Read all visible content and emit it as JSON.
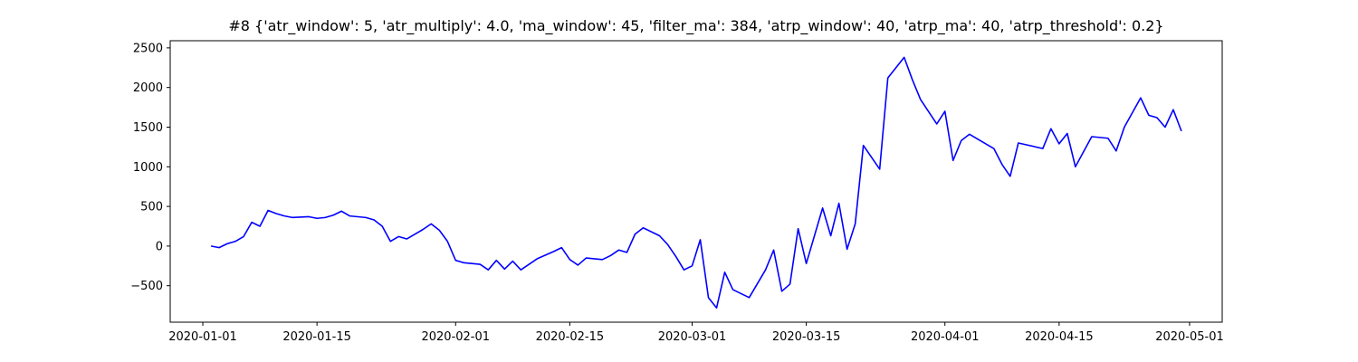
{
  "chart_data": {
    "type": "line",
    "title": "#8 {'atr_window': 5, 'atr_multiply': 4.0, 'ma_window': 45, 'filter_ma': 384, 'atrp_window': 40, 'atrp_ma': 40, 'atrp_threshold': 0.2}",
    "color": "#0000ff",
    "x": [
      "2020-01-02",
      "2020-01-03",
      "2020-01-04",
      "2020-01-05",
      "2020-01-06",
      "2020-01-07",
      "2020-01-08",
      "2020-01-09",
      "2020-01-10",
      "2020-01-11",
      "2020-01-12",
      "2020-01-14",
      "2020-01-15",
      "2020-01-16",
      "2020-01-17",
      "2020-01-18",
      "2020-01-19",
      "2020-01-21",
      "2020-01-22",
      "2020-01-23",
      "2020-01-24",
      "2020-01-25",
      "2020-01-26",
      "2020-01-27",
      "2020-01-28",
      "2020-01-29",
      "2020-01-30",
      "2020-01-31",
      "2020-02-01",
      "2020-02-02",
      "2020-02-04",
      "2020-02-05",
      "2020-02-06",
      "2020-02-07",
      "2020-02-08",
      "2020-02-09",
      "2020-02-11",
      "2020-02-13",
      "2020-02-14",
      "2020-02-15",
      "2020-02-16",
      "2020-02-17",
      "2020-02-19",
      "2020-02-20",
      "2020-02-21",
      "2020-02-22",
      "2020-02-23",
      "2020-02-24",
      "2020-02-26",
      "2020-02-27",
      "2020-02-28",
      "2020-02-29",
      "2020-03-01",
      "2020-03-02",
      "2020-03-03",
      "2020-03-04",
      "2020-03-05",
      "2020-03-06",
      "2020-03-07",
      "2020-03-08",
      "2020-03-10",
      "2020-03-11",
      "2020-03-12",
      "2020-03-13",
      "2020-03-14",
      "2020-03-15",
      "2020-03-17",
      "2020-03-18",
      "2020-03-19",
      "2020-03-20",
      "2020-03-21",
      "2020-03-22",
      "2020-03-24",
      "2020-03-25",
      "2020-03-26",
      "2020-03-27",
      "2020-03-28",
      "2020-03-29",
      "2020-03-31",
      "2020-04-01",
      "2020-04-02",
      "2020-04-03",
      "2020-04-04",
      "2020-04-07",
      "2020-04-08",
      "2020-04-09",
      "2020-04-10",
      "2020-04-13",
      "2020-04-14",
      "2020-04-15",
      "2020-04-16",
      "2020-04-17",
      "2020-04-19",
      "2020-04-21",
      "2020-04-22",
      "2020-04-23",
      "2020-04-25",
      "2020-04-26",
      "2020-04-27",
      "2020-04-28",
      "2020-04-29",
      "2020-04-30"
    ],
    "values": [
      0,
      -20,
      30,
      60,
      120,
      300,
      250,
      450,
      410,
      380,
      360,
      370,
      350,
      360,
      390,
      440,
      380,
      360,
      330,
      250,
      60,
      120,
      90,
      150,
      210,
      280,
      200,
      60,
      -180,
      -210,
      -230,
      -300,
      -180,
      -290,
      -190,
      -300,
      -160,
      -70,
      -20,
      -170,
      -240,
      -150,
      -170,
      -120,
      -50,
      -80,
      150,
      230,
      130,
      20,
      -130,
      -300,
      -250,
      80,
      -650,
      -780,
      -330,
      -550,
      -600,
      -650,
      -300,
      -50,
      -570,
      -480,
      220,
      -220,
      480,
      130,
      540,
      -40,
      280,
      1270,
      970,
      2120,
      2250,
      2380,
      2100,
      1850,
      1540,
      1700,
      1080,
      1330,
      1410,
      1230,
      1030,
      880,
      1300,
      1230,
      1480,
      1290,
      1420,
      1000,
      1380,
      1360,
      1200,
      1500,
      1870,
      1650,
      1620,
      1500,
      1720,
      1450
    ],
    "xlim": [
      "2019-12-28",
      "2020-05-05"
    ],
    "xticks": [
      "2020-01-01",
      "2020-01-15",
      "2020-02-01",
      "2020-02-15",
      "2020-03-01",
      "2020-03-15",
      "2020-04-01",
      "2020-04-15",
      "2020-05-01"
    ],
    "ylim": [
      -960,
      2590
    ],
    "yticks": [
      {
        "value": -500,
        "label": "−500"
      },
      0,
      500,
      1000,
      1500,
      2000,
      2500
    ]
  }
}
